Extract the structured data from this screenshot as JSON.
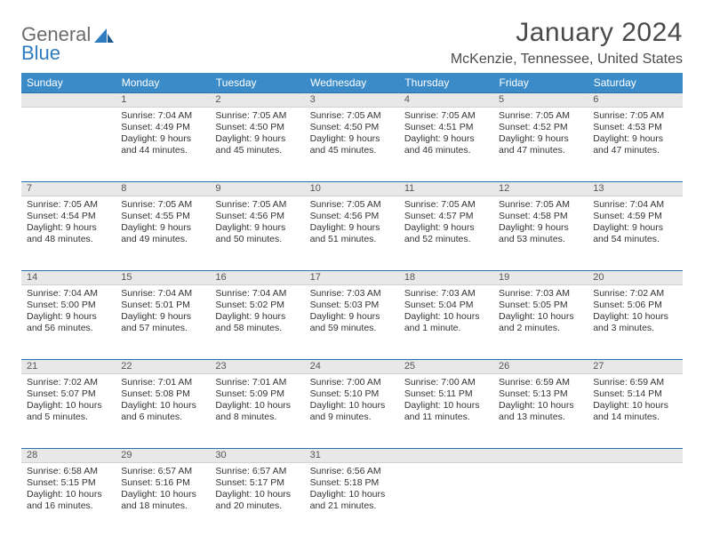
{
  "brand": {
    "word1": "General",
    "word2": "Blue"
  },
  "title": "January 2024",
  "location": "McKenzie, Tennessee, United States",
  "colors": {
    "header_bg": "#3b8bc8",
    "header_text": "#ffffff",
    "daynum_bg": "#e8e8e8",
    "rule": "#2f6fa8",
    "body_text": "#333333",
    "logo_gray": "#6b6b6b",
    "logo_blue": "#2f7bbf",
    "page_bg": "#ffffff"
  },
  "weekdays": [
    "Sunday",
    "Monday",
    "Tuesday",
    "Wednesday",
    "Thursday",
    "Friday",
    "Saturday"
  ],
  "weeks": [
    {
      "nums": [
        "",
        "1",
        "2",
        "3",
        "4",
        "5",
        "6"
      ],
      "cells": [
        {
          "sunrise": "",
          "sunset": "",
          "daylight1": "",
          "daylight2": ""
        },
        {
          "sunrise": "Sunrise: 7:04 AM",
          "sunset": "Sunset: 4:49 PM",
          "daylight1": "Daylight: 9 hours",
          "daylight2": "and 44 minutes."
        },
        {
          "sunrise": "Sunrise: 7:05 AM",
          "sunset": "Sunset: 4:50 PM",
          "daylight1": "Daylight: 9 hours",
          "daylight2": "and 45 minutes."
        },
        {
          "sunrise": "Sunrise: 7:05 AM",
          "sunset": "Sunset: 4:50 PM",
          "daylight1": "Daylight: 9 hours",
          "daylight2": "and 45 minutes."
        },
        {
          "sunrise": "Sunrise: 7:05 AM",
          "sunset": "Sunset: 4:51 PM",
          "daylight1": "Daylight: 9 hours",
          "daylight2": "and 46 minutes."
        },
        {
          "sunrise": "Sunrise: 7:05 AM",
          "sunset": "Sunset: 4:52 PM",
          "daylight1": "Daylight: 9 hours",
          "daylight2": "and 47 minutes."
        },
        {
          "sunrise": "Sunrise: 7:05 AM",
          "sunset": "Sunset: 4:53 PM",
          "daylight1": "Daylight: 9 hours",
          "daylight2": "and 47 minutes."
        }
      ]
    },
    {
      "nums": [
        "7",
        "8",
        "9",
        "10",
        "11",
        "12",
        "13"
      ],
      "cells": [
        {
          "sunrise": "Sunrise: 7:05 AM",
          "sunset": "Sunset: 4:54 PM",
          "daylight1": "Daylight: 9 hours",
          "daylight2": "and 48 minutes."
        },
        {
          "sunrise": "Sunrise: 7:05 AM",
          "sunset": "Sunset: 4:55 PM",
          "daylight1": "Daylight: 9 hours",
          "daylight2": "and 49 minutes."
        },
        {
          "sunrise": "Sunrise: 7:05 AM",
          "sunset": "Sunset: 4:56 PM",
          "daylight1": "Daylight: 9 hours",
          "daylight2": "and 50 minutes."
        },
        {
          "sunrise": "Sunrise: 7:05 AM",
          "sunset": "Sunset: 4:56 PM",
          "daylight1": "Daylight: 9 hours",
          "daylight2": "and 51 minutes."
        },
        {
          "sunrise": "Sunrise: 7:05 AM",
          "sunset": "Sunset: 4:57 PM",
          "daylight1": "Daylight: 9 hours",
          "daylight2": "and 52 minutes."
        },
        {
          "sunrise": "Sunrise: 7:05 AM",
          "sunset": "Sunset: 4:58 PM",
          "daylight1": "Daylight: 9 hours",
          "daylight2": "and 53 minutes."
        },
        {
          "sunrise": "Sunrise: 7:04 AM",
          "sunset": "Sunset: 4:59 PM",
          "daylight1": "Daylight: 9 hours",
          "daylight2": "and 54 minutes."
        }
      ]
    },
    {
      "nums": [
        "14",
        "15",
        "16",
        "17",
        "18",
        "19",
        "20"
      ],
      "cells": [
        {
          "sunrise": "Sunrise: 7:04 AM",
          "sunset": "Sunset: 5:00 PM",
          "daylight1": "Daylight: 9 hours",
          "daylight2": "and 56 minutes."
        },
        {
          "sunrise": "Sunrise: 7:04 AM",
          "sunset": "Sunset: 5:01 PM",
          "daylight1": "Daylight: 9 hours",
          "daylight2": "and 57 minutes."
        },
        {
          "sunrise": "Sunrise: 7:04 AM",
          "sunset": "Sunset: 5:02 PM",
          "daylight1": "Daylight: 9 hours",
          "daylight2": "and 58 minutes."
        },
        {
          "sunrise": "Sunrise: 7:03 AM",
          "sunset": "Sunset: 5:03 PM",
          "daylight1": "Daylight: 9 hours",
          "daylight2": "and 59 minutes."
        },
        {
          "sunrise": "Sunrise: 7:03 AM",
          "sunset": "Sunset: 5:04 PM",
          "daylight1": "Daylight: 10 hours",
          "daylight2": "and 1 minute."
        },
        {
          "sunrise": "Sunrise: 7:03 AM",
          "sunset": "Sunset: 5:05 PM",
          "daylight1": "Daylight: 10 hours",
          "daylight2": "and 2 minutes."
        },
        {
          "sunrise": "Sunrise: 7:02 AM",
          "sunset": "Sunset: 5:06 PM",
          "daylight1": "Daylight: 10 hours",
          "daylight2": "and 3 minutes."
        }
      ]
    },
    {
      "nums": [
        "21",
        "22",
        "23",
        "24",
        "25",
        "26",
        "27"
      ],
      "cells": [
        {
          "sunrise": "Sunrise: 7:02 AM",
          "sunset": "Sunset: 5:07 PM",
          "daylight1": "Daylight: 10 hours",
          "daylight2": "and 5 minutes."
        },
        {
          "sunrise": "Sunrise: 7:01 AM",
          "sunset": "Sunset: 5:08 PM",
          "daylight1": "Daylight: 10 hours",
          "daylight2": "and 6 minutes."
        },
        {
          "sunrise": "Sunrise: 7:01 AM",
          "sunset": "Sunset: 5:09 PM",
          "daylight1": "Daylight: 10 hours",
          "daylight2": "and 8 minutes."
        },
        {
          "sunrise": "Sunrise: 7:00 AM",
          "sunset": "Sunset: 5:10 PM",
          "daylight1": "Daylight: 10 hours",
          "daylight2": "and 9 minutes."
        },
        {
          "sunrise": "Sunrise: 7:00 AM",
          "sunset": "Sunset: 5:11 PM",
          "daylight1": "Daylight: 10 hours",
          "daylight2": "and 11 minutes."
        },
        {
          "sunrise": "Sunrise: 6:59 AM",
          "sunset": "Sunset: 5:13 PM",
          "daylight1": "Daylight: 10 hours",
          "daylight2": "and 13 minutes."
        },
        {
          "sunrise": "Sunrise: 6:59 AM",
          "sunset": "Sunset: 5:14 PM",
          "daylight1": "Daylight: 10 hours",
          "daylight2": "and 14 minutes."
        }
      ]
    },
    {
      "nums": [
        "28",
        "29",
        "30",
        "31",
        "",
        "",
        ""
      ],
      "cells": [
        {
          "sunrise": "Sunrise: 6:58 AM",
          "sunset": "Sunset: 5:15 PM",
          "daylight1": "Daylight: 10 hours",
          "daylight2": "and 16 minutes."
        },
        {
          "sunrise": "Sunrise: 6:57 AM",
          "sunset": "Sunset: 5:16 PM",
          "daylight1": "Daylight: 10 hours",
          "daylight2": "and 18 minutes."
        },
        {
          "sunrise": "Sunrise: 6:57 AM",
          "sunset": "Sunset: 5:17 PM",
          "daylight1": "Daylight: 10 hours",
          "daylight2": "and 20 minutes."
        },
        {
          "sunrise": "Sunrise: 6:56 AM",
          "sunset": "Sunset: 5:18 PM",
          "daylight1": "Daylight: 10 hours",
          "daylight2": "and 21 minutes."
        },
        {
          "sunrise": "",
          "sunset": "",
          "daylight1": "",
          "daylight2": ""
        },
        {
          "sunrise": "",
          "sunset": "",
          "daylight1": "",
          "daylight2": ""
        },
        {
          "sunrise": "",
          "sunset": "",
          "daylight1": "",
          "daylight2": ""
        }
      ]
    }
  ]
}
